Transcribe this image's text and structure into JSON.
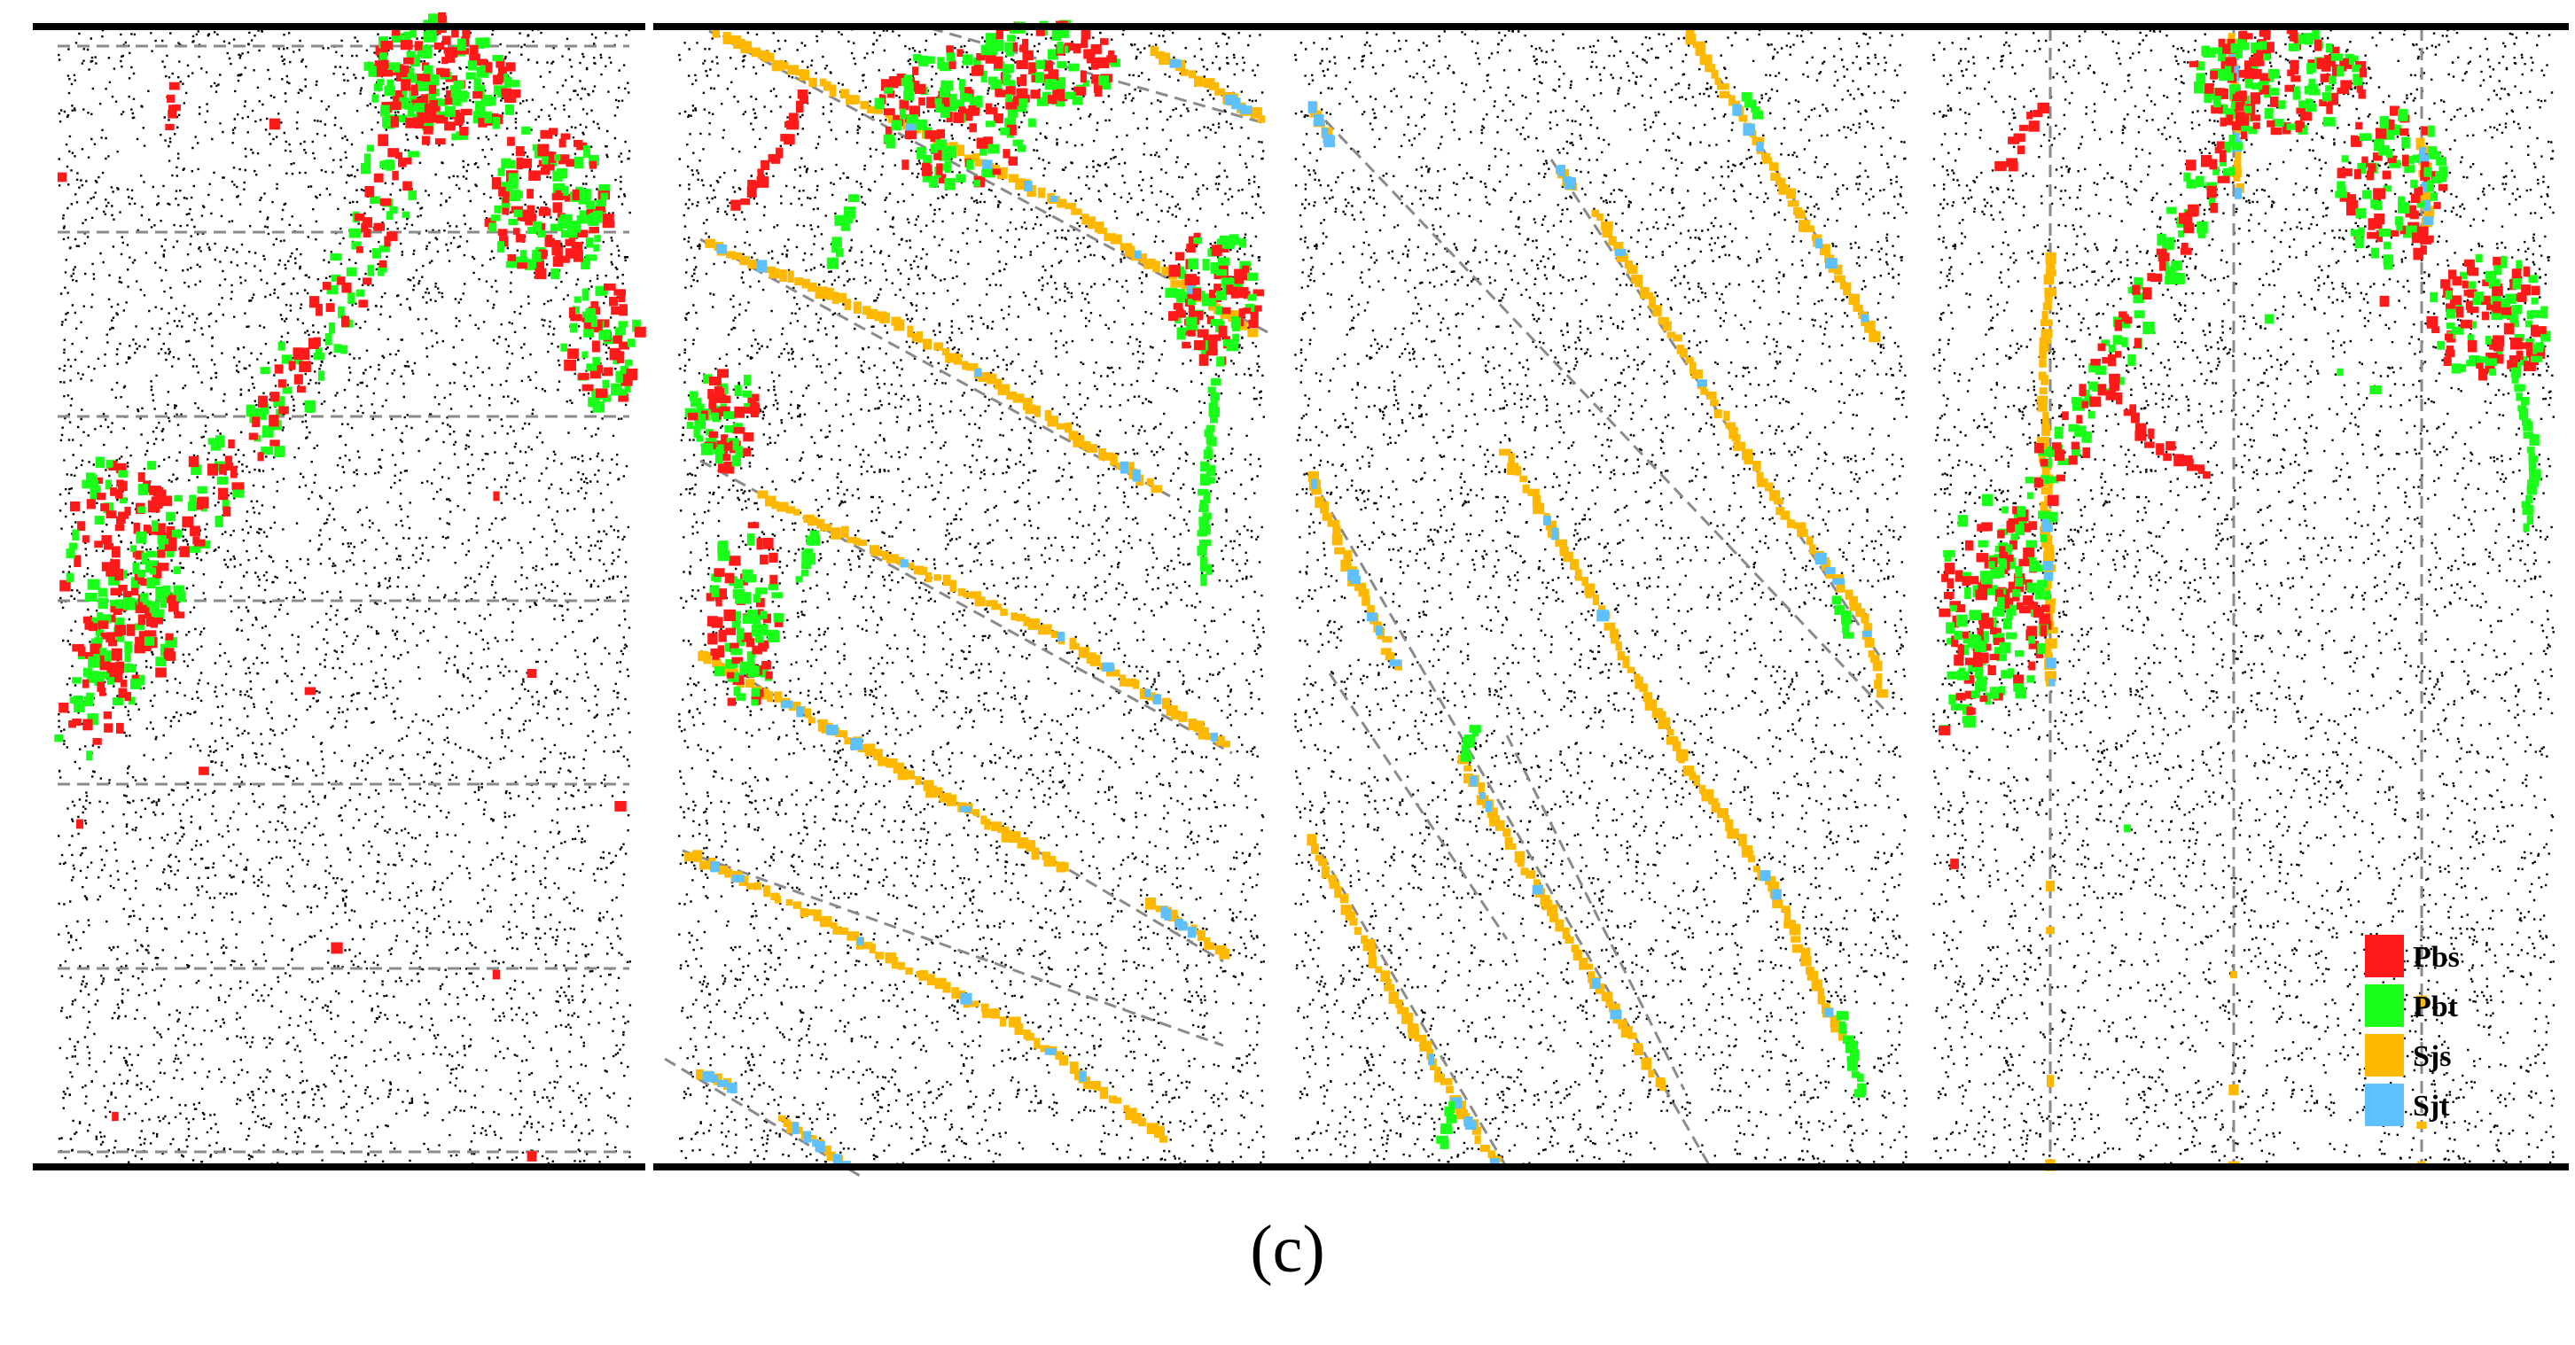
{
  "caption": "(c)",
  "legend": {
    "entries": [
      {
        "label": "Pbs",
        "color": "#ff1a1a"
      },
      {
        "label": "Pbt",
        "color": "#1aff1a"
      },
      {
        "label": "Sjs",
        "color": "#ffb800"
      },
      {
        "label": "Sjt",
        "color": "#5fc0ff"
      }
    ]
  },
  "colors": {
    "particle": "#000000",
    "boundary": "#000000",
    "joint_line": "#8a8a8a",
    "background": "#ffffff"
  },
  "panels": [
    {
      "id": "panel-1",
      "joint_set": "horizontal"
    },
    {
      "id": "panel-2",
      "joint_set": "inclined-shallow"
    },
    {
      "id": "panel-3",
      "joint_set": "inclined-steep"
    },
    {
      "id": "panel-4",
      "joint_set": "vertical"
    }
  ]
}
